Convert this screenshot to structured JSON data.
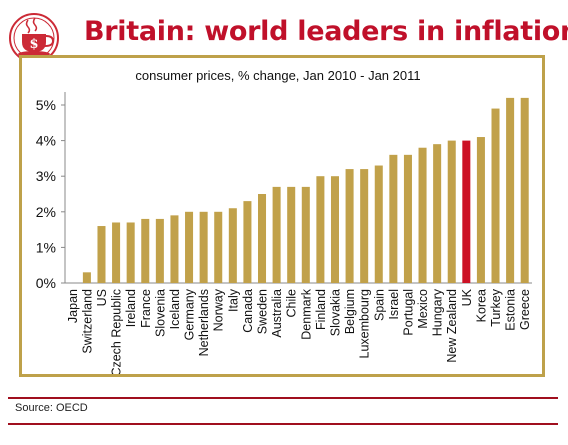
{
  "header": {
    "title": "Britain: world leaders in inflation",
    "logo_letter": "$"
  },
  "footer": {
    "source": "Source: OECD"
  },
  "colors": {
    "title": "#c0102a",
    "bar": "#c1a14a",
    "highlight": "#cc1125",
    "frame": "#bea14a",
    "rule": "#a00f1e"
  },
  "chart_data": {
    "type": "bar",
    "title": "consumer prices, % change, Jan 2010 - Jan 2011",
    "xlabel": "",
    "ylabel": "",
    "ylim": [
      0,
      5.5
    ],
    "yticks": [
      "0%",
      "1%",
      "2%",
      "3%",
      "4%",
      "5%"
    ],
    "ytick_values": [
      0,
      1,
      2,
      3,
      4,
      5
    ],
    "grid": false,
    "highlight": "UK",
    "categories": [
      "Japan",
      "Switzerland",
      "US",
      "Czech Republic",
      "Ireland",
      "France",
      "Slovenia",
      "Iceland",
      "Germany",
      "Netherlands",
      "Norway",
      "Italy",
      "Canada",
      "Sweden",
      "Australia",
      "Chile",
      "Denmark",
      "Finland",
      "Slovakia",
      "Belgium",
      "Luxembourg",
      "Spain",
      "Israel",
      "Portugal",
      "Mexico",
      "Hungary",
      "New Zealand",
      "UK",
      "Korea",
      "Turkey",
      "Estonia",
      "Greece"
    ],
    "values": [
      0.0,
      0.3,
      1.6,
      1.7,
      1.7,
      1.8,
      1.8,
      1.9,
      2.0,
      2.0,
      2.0,
      2.1,
      2.3,
      2.5,
      2.7,
      2.7,
      2.7,
      3.0,
      3.0,
      3.2,
      3.2,
      3.3,
      3.6,
      3.6,
      3.8,
      3.9,
      4.0,
      4.0,
      4.1,
      4.9,
      5.2,
      5.2
    ]
  }
}
